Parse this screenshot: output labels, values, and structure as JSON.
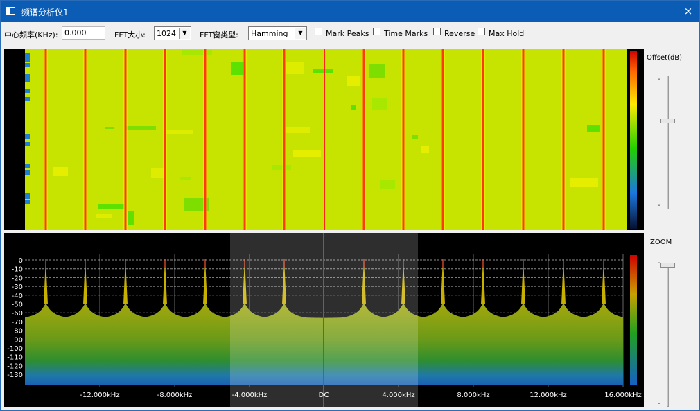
{
  "window": {
    "title": "频谱分析仪1",
    "close_icon": "×"
  },
  "toolbar": {
    "center_freq_label": "中心频率(KHz):",
    "center_freq_value": "0.000",
    "fft_size_label": "FFT大小:",
    "fft_size_value": "1024",
    "fft_window_label": "FFT窗类型:",
    "fft_window_value": "Hamming",
    "checkboxes": [
      {
        "label": "Mark Peaks",
        "checked": false
      },
      {
        "label": "Time Marks",
        "checked": false
      },
      {
        "label": "Reverse",
        "checked": false
      },
      {
        "label": "Max Hold",
        "checked": false
      }
    ]
  },
  "waterfall": {
    "offset_label": "Offset(dB)"
  },
  "spectrum": {
    "zoom_label": "ZOOM",
    "y_ticks": [
      "0",
      "-10",
      "-20",
      "-30",
      "-40",
      "-50",
      "-60",
      "-70",
      "-80",
      "-90",
      "-100",
      "-110",
      "-120",
      "-130"
    ],
    "x_ticks": [
      "-12.000kHz",
      "-8.000kHz",
      "-4.000kHz",
      "DC",
      "4.000kHz",
      "8.000kHz",
      "12.000kHz",
      "16.000kHz"
    ]
  },
  "slider_marks": {
    "dash": "-"
  },
  "colors": {
    "titlebar": "#0a5cb5",
    "center_marker": "#ff2020",
    "waterfall_base": "#c8e600",
    "fill_top": "#9aa40a",
    "fill_bottom": "#1b5fb5"
  }
}
